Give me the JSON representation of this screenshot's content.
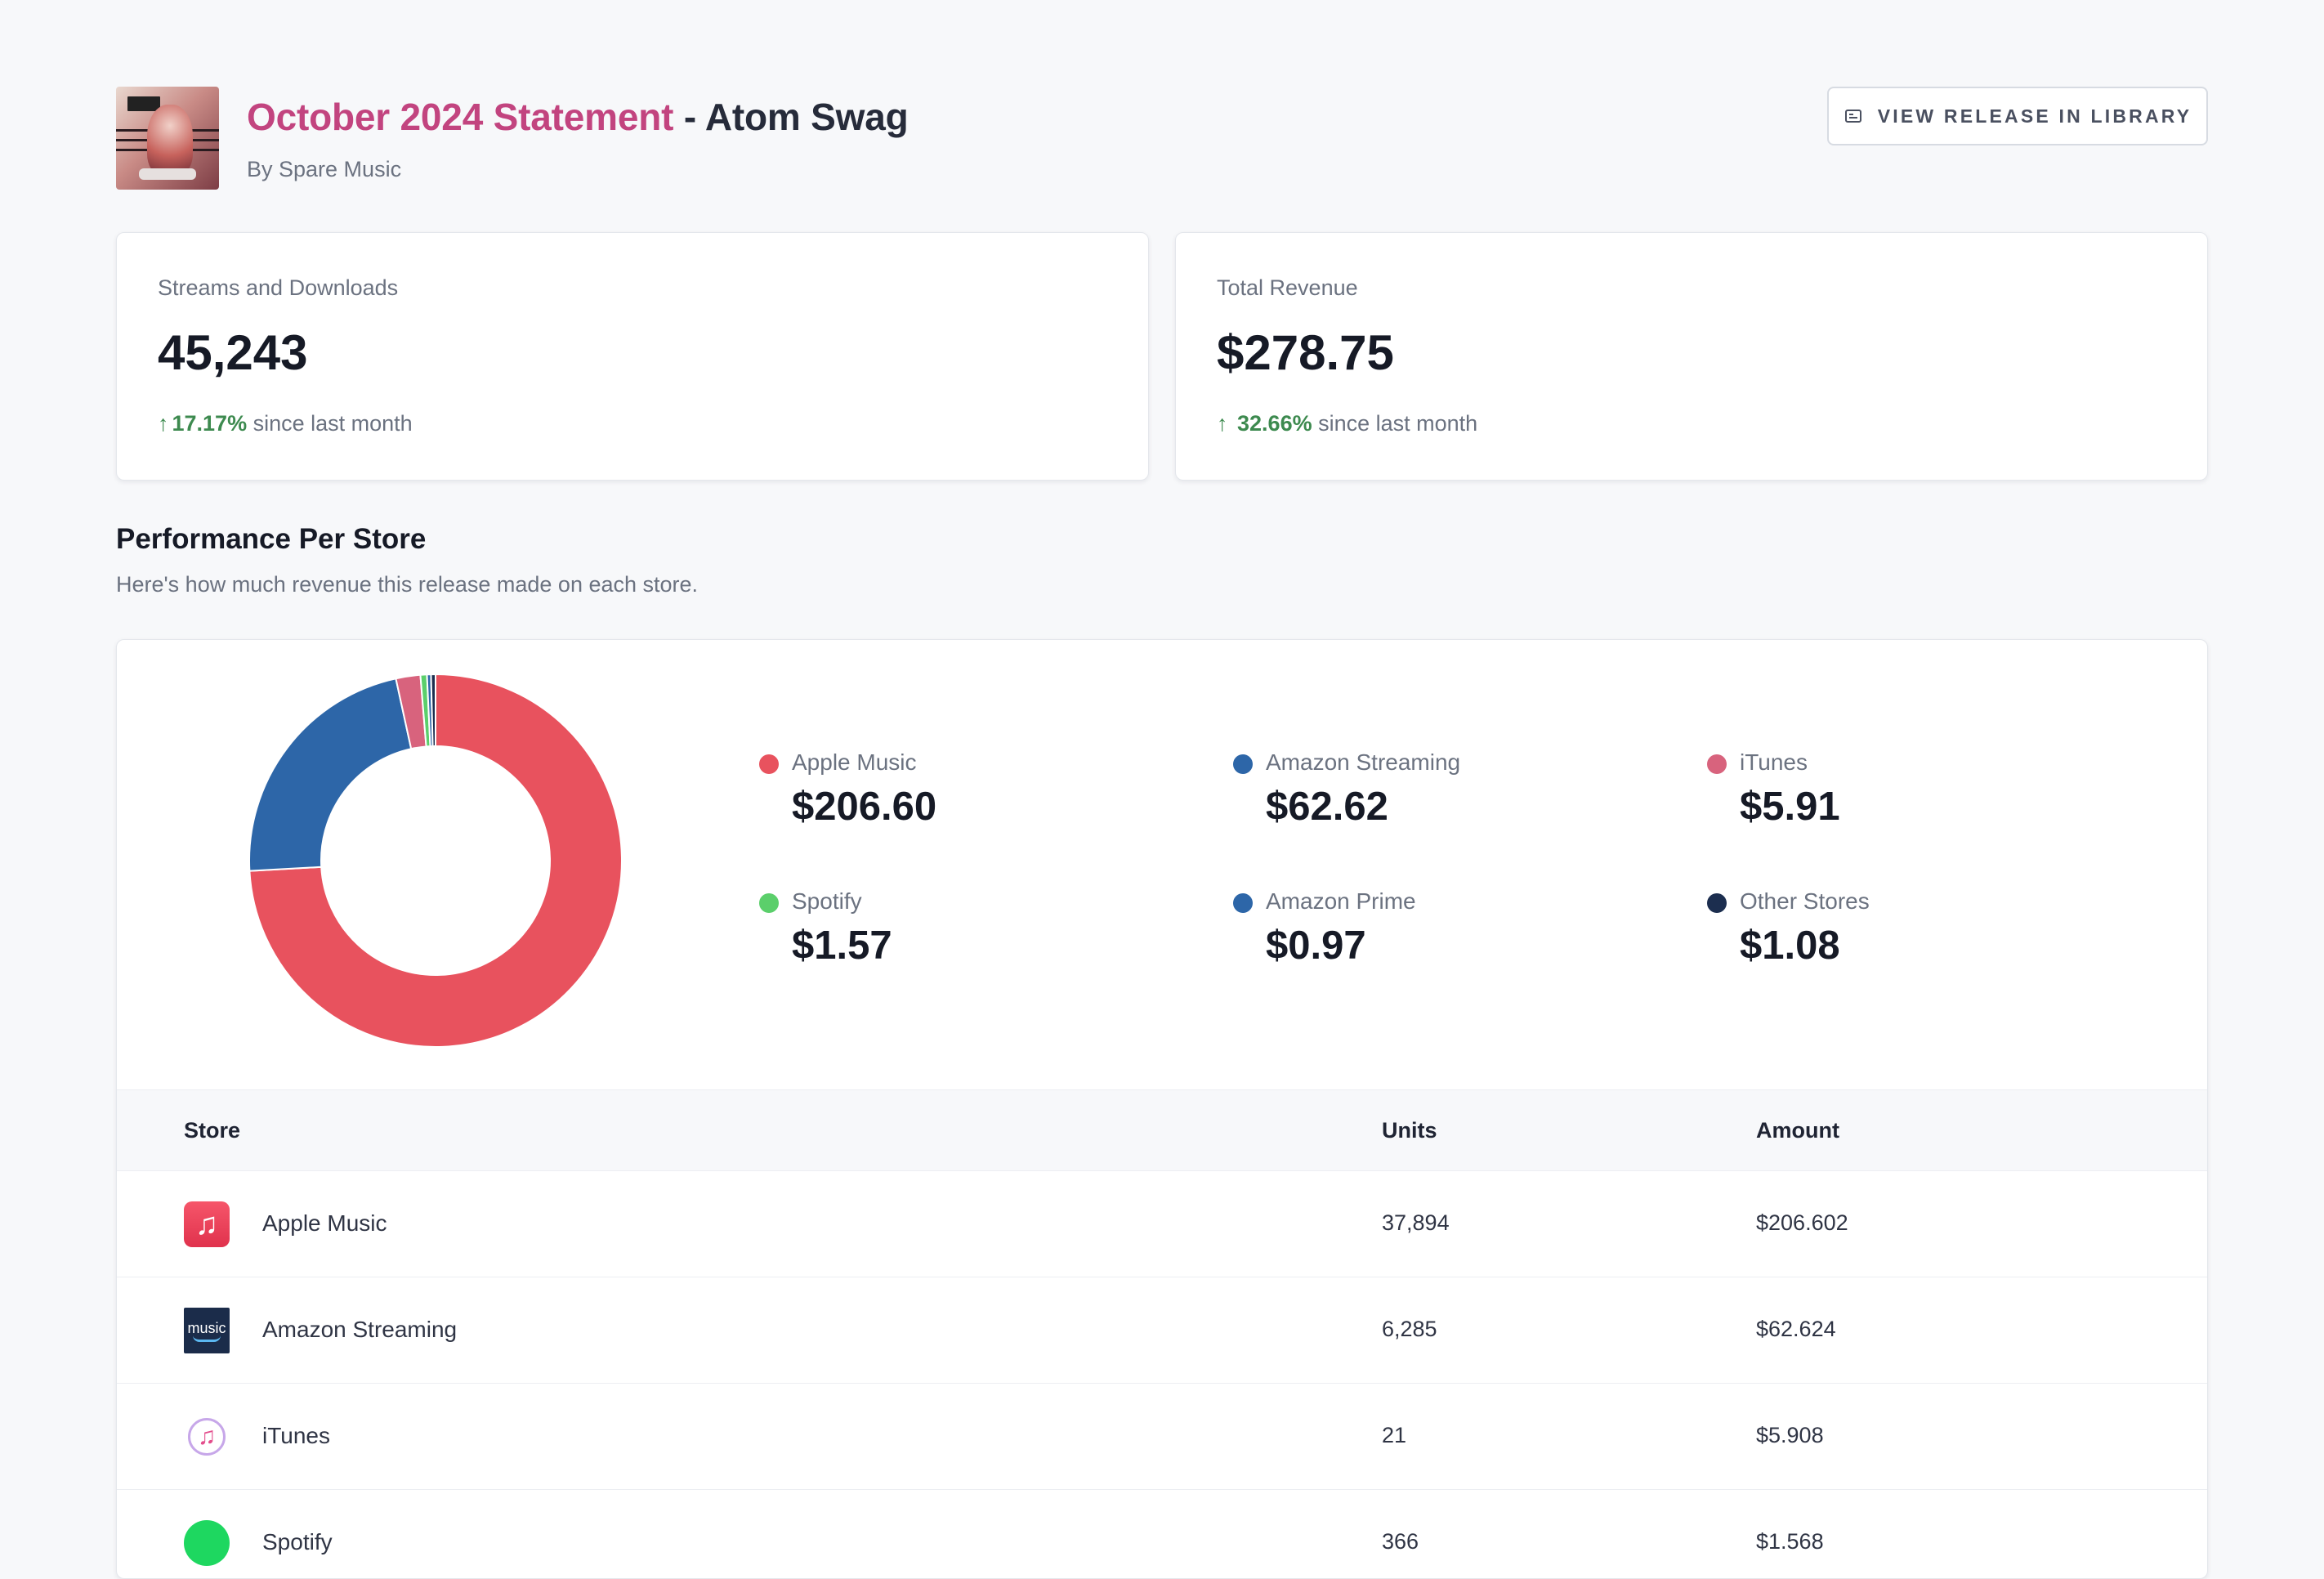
{
  "header": {
    "title_accent": "October 2024 Statement",
    "title_rest": " - Atom Swag",
    "subtitle": "By Spare Music",
    "library_button": "VIEW RELEASE IN LIBRARY"
  },
  "stats": [
    {
      "label": "Streams and Downloads",
      "value": "45,243",
      "arrow": "↑",
      "delta": "17.17%",
      "suffix": " since last month"
    },
    {
      "label": "Total Revenue",
      "value": "$278.75",
      "arrow": "↑ ",
      "delta": "32.66%",
      "suffix": " since last month"
    }
  ],
  "section": {
    "title": "Performance Per Store",
    "subtitle": "Here's how much revenue this release made on each store."
  },
  "legend": [
    {
      "name": "Apple Music",
      "amount": "$206.60",
      "color": "#e8525e"
    },
    {
      "name": "Amazon Streaming",
      "amount": "$62.62",
      "color": "#2d66a8"
    },
    {
      "name": "iTunes",
      "amount": "$5.91",
      "color": "#d8637d"
    },
    {
      "name": "Spotify",
      "amount": "$1.57",
      "color": "#5bcf6b"
    },
    {
      "name": "Amazon Prime",
      "amount": "$0.97",
      "color": "#2d66a8"
    },
    {
      "name": "Other Stores",
      "amount": "$1.08",
      "color": "#1c2e4f"
    }
  ],
  "chart_data": {
    "type": "pie",
    "donut": true,
    "categories": [
      "Apple Music",
      "Amazon Streaming",
      "iTunes",
      "Spotify",
      "Amazon Prime",
      "Other Stores"
    ],
    "values": [
      206.6,
      62.62,
      5.91,
      1.57,
      0.97,
      1.08
    ],
    "colors": [
      "#e8525e",
      "#2d66a8",
      "#d8637d",
      "#5bcf6b",
      "#2d66a8",
      "#1c2e4f"
    ]
  },
  "table": {
    "headers": {
      "store": "Store",
      "units": "Units",
      "amount": "Amount"
    },
    "rows": [
      {
        "store": "Apple Music",
        "units": "37,894",
        "amount": "$206.602",
        "icon": "apple-music-icon"
      },
      {
        "store": "Amazon Streaming",
        "units": "6,285",
        "amount": "$62.624",
        "icon": "amazon-music-icon"
      },
      {
        "store": "iTunes",
        "units": "21",
        "amount": "$5.908",
        "icon": "itunes-icon"
      },
      {
        "store": "Spotify",
        "units": "366",
        "amount": "$1.568",
        "icon": "spotify-icon"
      }
    ],
    "amazon_logo_text": "music",
    "apple_logo_glyph": "♫",
    "itunes_logo_glyph": "♫"
  }
}
